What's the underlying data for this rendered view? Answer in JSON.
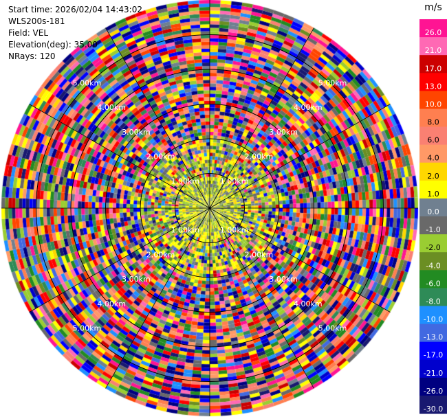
{
  "info": {
    "start_time": "Start time: 2026/02/04 14:43:02",
    "site": "WLS200s-181",
    "field": "Field: VEL",
    "elevation": "Elevation(deg): 35.00",
    "nrays": "NRays: 120"
  },
  "chart_data": {
    "type": "ppi",
    "field": "VEL",
    "units": "m/s",
    "nrays": 120,
    "elevation_deg": 35.0,
    "max_range_km": 6.0,
    "range_rings": [
      {
        "range_km": 1,
        "label": "1.00km"
      },
      {
        "range_km": 2,
        "label": "2.00km"
      },
      {
        "range_km": 3,
        "label": "3.00km"
      },
      {
        "range_km": 4,
        "label": "4.00km"
      },
      {
        "range_km": 5,
        "label": "5.00km"
      }
    ],
    "colorbar": {
      "title": "m/s",
      "ticks": [
        "26.0",
        "21.0",
        "17.0",
        "13.0",
        "10.0",
        "8.0",
        "6.0",
        "4.0",
        "2.0",
        "1.0",
        "0.0",
        "-1.0",
        "-2.0",
        "-4.0",
        "-6.0",
        "-8.0",
        "-10.0",
        "-13.0",
        "-17.0",
        "-21.0",
        "-26.0",
        "-30.0"
      ],
      "colors": [
        "#ff1493",
        "#ff69b4",
        "#cc0000",
        "#ff0000",
        "#ff4500",
        "#ff7f50",
        "#fa8072",
        "#ff9966",
        "#ffd700",
        "#ffff00",
        "#708090",
        "#696969",
        "#9acd32",
        "#6b8e23",
        "#228b22",
        "#2e8b57",
        "#1e90ff",
        "#4169e1",
        "#0000ff",
        "#0000cd",
        "#000080",
        "#191970"
      ]
    }
  }
}
